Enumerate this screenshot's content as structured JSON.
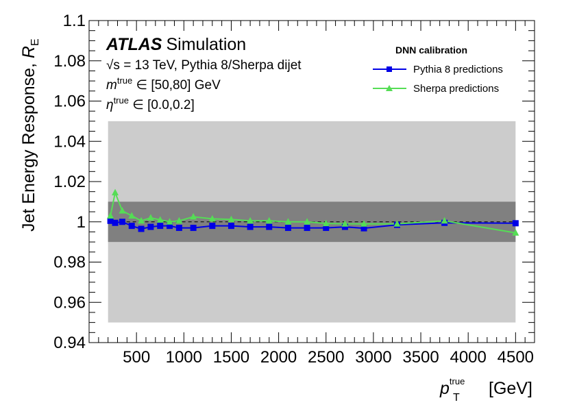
{
  "chart_data": {
    "type": "line",
    "title": "",
    "xlabel": "p_T^true [GeV]",
    "xlabel_parts": {
      "symbol": "p",
      "sub": "T",
      "sup": "true",
      "unit": "[GeV]"
    },
    "ylabel": "Jet Energy Response, R_E",
    "ylabel_parts": {
      "main": "Jet Energy Response, ",
      "symbol": "R",
      "sub": "E"
    },
    "xlim": [
      0,
      4700
    ],
    "ylim": [
      0.94,
      1.1
    ],
    "x_ticks": [
      500,
      1000,
      1500,
      2000,
      2500,
      3000,
      3500,
      4000,
      4500
    ],
    "x_tick_labels": [
      "500",
      "1000",
      "1500",
      "2000",
      "2500",
      "3000",
      "3500",
      "4000",
      "4500"
    ],
    "y_ticks": [
      0.94,
      0.96,
      0.98,
      1.0,
      1.02,
      1.04,
      1.06,
      1.08,
      1.1
    ],
    "y_tick_labels": [
      "0.94",
      "0.96",
      "0.98",
      "1",
      "1.02",
      "1.04",
      "1.06",
      "1.08",
      "1.1"
    ],
    "grid": false,
    "reference_line": {
      "y": 1.0,
      "style": "dashed",
      "color": "#000000"
    },
    "bands": [
      {
        "x": [
          200,
          4500
        ],
        "y": [
          0.95,
          1.05
        ],
        "color": "#cccccc"
      },
      {
        "x": [
          200,
          4500
        ],
        "y": [
          0.99,
          1.01
        ],
        "color": "#808080"
      }
    ],
    "annotations": {
      "atlas": "ATLAS",
      "simulation": "Simulation",
      "line1": "√s = 13 TeV, Pythia 8/Sherpa dijet",
      "line2_symbol": "m",
      "line2_sup": "true",
      "line2_rest": " ∈ [50,80] GeV",
      "line3_symbol": "η",
      "line3_sup": "true",
      "line3_rest": " ∈ [0.0,0.2]"
    },
    "legend": {
      "title": "DNN calibration",
      "position": "top-right"
    },
    "series": [
      {
        "name": "Pythia 8 predictions",
        "color": "#0000e6",
        "marker": "square",
        "x": [
          225,
          275,
          350,
          450,
          550,
          650,
          750,
          850,
          950,
          1100,
          1300,
          1500,
          1700,
          1900,
          2100,
          2300,
          2500,
          2700,
          2900,
          3250,
          3750,
          4500
        ],
        "y": [
          1.0005,
          0.9995,
          1.0,
          0.998,
          0.9965,
          0.9975,
          0.998,
          0.998,
          0.997,
          0.997,
          0.998,
          0.998,
          0.9975,
          0.9975,
          0.997,
          0.997,
          0.997,
          0.9975,
          0.9968,
          0.9985,
          0.9995,
          0.9993
        ]
      },
      {
        "name": "Sherpa predictions",
        "color": "#55dd55",
        "marker": "triangle",
        "x": [
          225,
          275,
          350,
          450,
          550,
          650,
          750,
          850,
          950,
          1100,
          1300,
          1500,
          1700,
          1900,
          2100,
          2300,
          2500,
          2700,
          2900,
          3250,
          3750,
          4500
        ],
        "y": [
          1.003,
          1.0145,
          1.0055,
          1.003,
          1.0005,
          1.002,
          1.001,
          1.0,
          1.0005,
          1.0025,
          1.0015,
          1.0012,
          1.0005,
          1.0005,
          1.0,
          1.0,
          0.9992,
          0.999,
          0.999,
          0.999,
          1.0005,
          0.9945
        ]
      }
    ]
  }
}
